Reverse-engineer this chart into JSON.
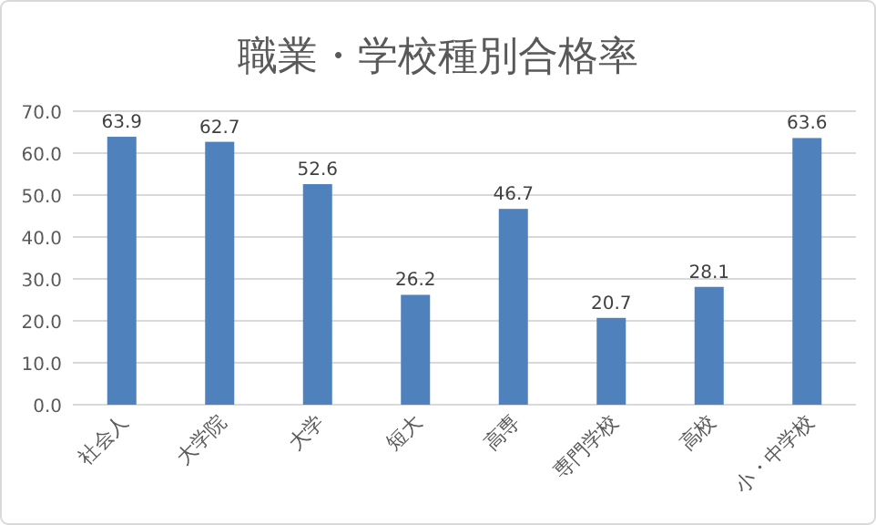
{
  "chart_data": {
    "type": "bar",
    "title": "職業・学校種別合格率",
    "categories": [
      "社会人",
      "大学院",
      "大学",
      "短大",
      "高専",
      "専門学校",
      "高校",
      "小・中学校"
    ],
    "values": [
      63.9,
      62.7,
      52.6,
      26.2,
      46.7,
      20.7,
      28.1,
      63.6
    ],
    "color": "#4f81bd",
    "ylim": [
      0,
      70
    ],
    "yticks": [
      {
        "value": 0,
        "label": "0.0"
      },
      {
        "value": 10,
        "label": "10.0"
      },
      {
        "value": 20,
        "label": "20.0"
      },
      {
        "value": 30,
        "label": "30.0"
      },
      {
        "value": 40,
        "label": "40.0"
      },
      {
        "value": 50,
        "label": "50.0"
      },
      {
        "value": 60,
        "label": "60.0"
      },
      {
        "value": 70,
        "label": "70.0"
      }
    ],
    "grid": true,
    "data_labels": true
  }
}
